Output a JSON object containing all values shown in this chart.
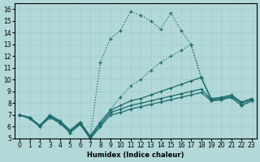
{
  "xlabel": "Humidex (Indice chaleur)",
  "background_color": "#b2d8d8",
  "grid_color": "#9ecece",
  "line_color": "#1a6b6b",
  "xlim": [
    -0.5,
    23.5
  ],
  "ylim": [
    5,
    16.5
  ],
  "yticks": [
    5,
    6,
    7,
    8,
    9,
    10,
    11,
    12,
    13,
    14,
    15,
    16
  ],
  "xticks": [
    0,
    1,
    2,
    3,
    4,
    5,
    6,
    7,
    8,
    9,
    10,
    11,
    12,
    13,
    14,
    15,
    16,
    17,
    18,
    19,
    20,
    21,
    22,
    23
  ],
  "series": [
    {
      "style": "dotted",
      "x": [
        0,
        1,
        2,
        3,
        4,
        5,
        6,
        7,
        8,
        9,
        10,
        11,
        12,
        13,
        14,
        15,
        16,
        17,
        18,
        19,
        20,
        21,
        22,
        23
      ],
      "y": [
        7.0,
        6.7,
        6.0,
        6.8,
        6.3,
        5.5,
        6.2,
        5.0,
        11.5,
        13.5,
        14.2,
        15.8,
        15.5,
        15.0,
        14.3,
        15.7,
        14.2,
        13.0,
        10.2,
        8.2,
        8.3,
        8.5,
        7.8,
        8.2
      ]
    },
    {
      "style": "dotted",
      "x": [
        0,
        1,
        2,
        3,
        4,
        5,
        6,
        7,
        8,
        9,
        10,
        11,
        12,
        13,
        14,
        15,
        16,
        17,
        18,
        19,
        20,
        21,
        22,
        23
      ],
      "y": [
        7.0,
        6.7,
        6.0,
        6.8,
        6.3,
        5.5,
        6.2,
        5.0,
        6.0,
        7.5,
        8.5,
        9.5,
        10.0,
        10.8,
        11.5,
        12.0,
        12.5,
        13.0,
        10.2,
        8.2,
        8.3,
        8.5,
        7.8,
        8.2
      ]
    },
    {
      "style": "solid",
      "x": [
        0,
        1,
        2,
        3,
        4,
        5,
        6,
        7,
        8,
        9,
        10,
        11,
        12,
        13,
        14,
        15,
        16,
        17,
        18,
        19,
        20,
        21,
        22,
        23
      ],
      "y": [
        7.0,
        6.7,
        6.0,
        6.8,
        6.3,
        5.5,
        6.2,
        5.0,
        6.0,
        7.0,
        7.2,
        7.5,
        7.7,
        7.9,
        8.1,
        8.3,
        8.5,
        8.7,
        8.9,
        8.2,
        8.3,
        8.5,
        7.8,
        8.2
      ]
    },
    {
      "style": "solid",
      "x": [
        0,
        1,
        2,
        3,
        4,
        5,
        6,
        7,
        8,
        9,
        10,
        11,
        12,
        13,
        14,
        15,
        16,
        17,
        18,
        19,
        20,
        21,
        22,
        23
      ],
      "y": [
        7.0,
        6.7,
        6.1,
        6.9,
        6.4,
        5.6,
        6.3,
        5.1,
        6.2,
        7.2,
        7.5,
        7.8,
        8.0,
        8.2,
        8.4,
        8.6,
        8.8,
        9.0,
        9.2,
        8.3,
        8.4,
        8.6,
        8.0,
        8.3
      ]
    },
    {
      "style": "solid",
      "x": [
        0,
        1,
        2,
        3,
        4,
        5,
        6,
        7,
        8,
        9,
        10,
        11,
        12,
        13,
        14,
        15,
        16,
        17,
        18,
        19,
        20,
        21,
        22,
        23
      ],
      "y": [
        7.0,
        6.8,
        6.1,
        7.0,
        6.5,
        5.7,
        6.4,
        5.2,
        6.4,
        7.4,
        7.8,
        8.2,
        8.4,
        8.7,
        9.0,
        9.3,
        9.6,
        9.9,
        10.2,
        8.4,
        8.5,
        8.7,
        8.1,
        8.4
      ]
    }
  ]
}
